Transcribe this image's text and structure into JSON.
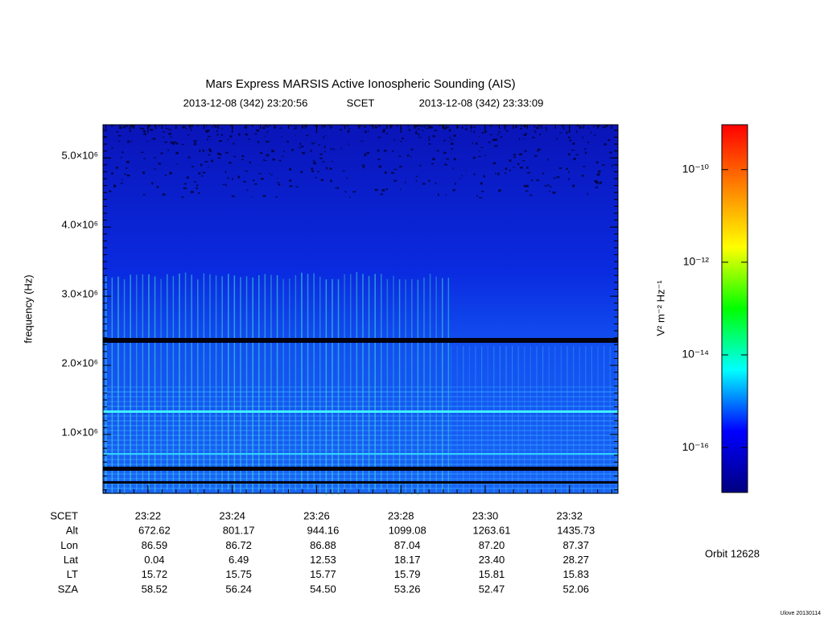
{
  "chart_data": {
    "type": "spectrogram",
    "title": "Mars Express MARSIS Active Ionospheric Sounding (AIS)",
    "start_time": "2013-12-08 (342) 23:20:56",
    "time_system": "SCET",
    "end_time": "2013-12-08 (342) 23:33:09",
    "y_label": "frequency (Hz)",
    "ylim": [
      150000,
      5480000
    ],
    "yticks": [
      {
        "value": 1000000,
        "label": "1.0×10⁶"
      },
      {
        "value": 2000000,
        "label": "2.0×10⁶"
      },
      {
        "value": 3000000,
        "label": "3.0×10⁶"
      },
      {
        "value": 4000000,
        "label": "4.0×10⁶"
      },
      {
        "value": 5000000,
        "label": "5.0×10⁶"
      }
    ],
    "xlim": [
      "23:20:56",
      "23:33:09"
    ],
    "xticks": [
      "23:22",
      "23:24",
      "23:26",
      "23:28",
      "23:30",
      "23:32"
    ],
    "ephemeris": [
      {
        "label": "SCET",
        "values": [
          "23:22",
          "23:24",
          "23:26",
          "23:28",
          "23:30",
          "23:32"
        ]
      },
      {
        "label": "Alt",
        "values": [
          "672.62",
          "801.17",
          "944.16",
          "1099.08",
          "1263.61",
          "1435.73"
        ]
      },
      {
        "label": "Lon",
        "values": [
          "86.59",
          "86.72",
          "86.88",
          "87.04",
          "87.20",
          "87.37"
        ]
      },
      {
        "label": "Lat",
        "values": [
          "0.04",
          "6.49",
          "12.53",
          "18.17",
          "23.40",
          "28.27"
        ]
      },
      {
        "label": "LT",
        "values": [
          "15.72",
          "15.75",
          "15.77",
          "15.79",
          "15.81",
          "15.83"
        ]
      },
      {
        "label": "SZA",
        "values": [
          "58.52",
          "56.24",
          "54.50",
          "53.26",
          "52.47",
          "52.06"
        ]
      }
    ],
    "colorbar": {
      "label": "V² m⁻² Hz⁻¹",
      "log_scale": true,
      "zlim": [
        1.07e-17,
        9.3e-10
      ],
      "ticks": [
        {
          "value": 1e-16,
          "label": "10⁻¹⁶"
        },
        {
          "value": 1e-14,
          "label": "10⁻¹⁴"
        },
        {
          "value": 1e-12,
          "label": "10⁻¹²"
        },
        {
          "value": 1e-10,
          "label": "10⁻¹⁰"
        }
      ],
      "colors": [
        "#000080",
        "#0000ff",
        "#00ffff",
        "#00ff00",
        "#ffff00",
        "#ff8000",
        "#ff0000"
      ]
    },
    "orbit": "Orbit 12628",
    "footer": "Ulove 20130114"
  }
}
